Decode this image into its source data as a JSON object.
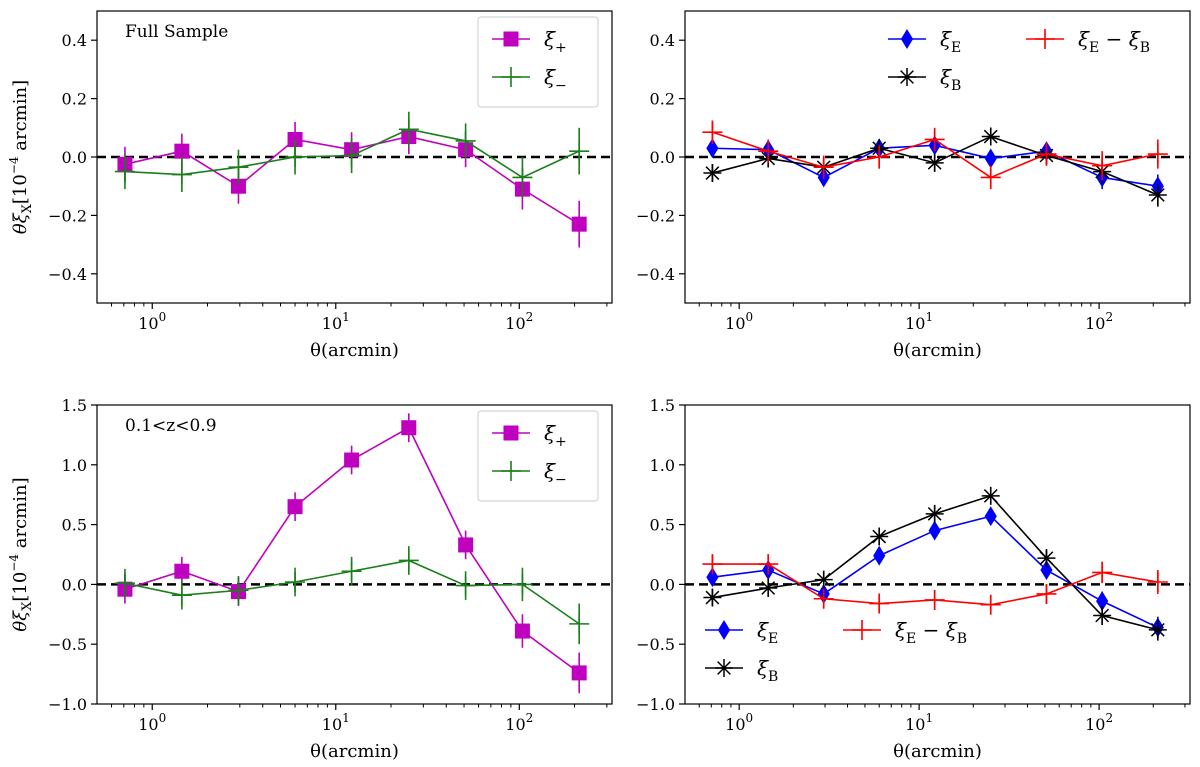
{
  "chart_data": [
    {
      "type": "line",
      "panel": "top-left",
      "annotation": "Full Sample",
      "xlabel": "θ(arcmin)",
      "ylabel": "θξ",
      "ylabel_sub": "X",
      "ylabel_unit": "[10",
      "ylabel_exp": "−4",
      "ylabel_unit_tail": " arcmin]",
      "xscale": "log",
      "xlim": [
        0.5,
        320
      ],
      "ylim": [
        -0.5,
        0.5
      ],
      "x_ticks": [
        {
          "value": 1,
          "label": "10",
          "exp": "0"
        },
        {
          "value": 10,
          "label": "10",
          "exp": "1"
        },
        {
          "value": 100,
          "label": "10",
          "exp": "2"
        }
      ],
      "y_ticks": [
        {
          "value": 0.4,
          "label": "0.4"
        },
        {
          "value": 0.2,
          "label": "0.2"
        },
        {
          "value": 0.0,
          "label": "0.0"
        },
        {
          "value": -0.2,
          "label": "−0.2"
        },
        {
          "value": -0.4,
          "label": "−0.4"
        }
      ],
      "zero_line": true,
      "legend": {
        "position": "top-right",
        "columns": 1
      },
      "series": [
        {
          "name": "ξ",
          "sub": "+",
          "color": "#bf00bf",
          "marker": "square",
          "x": [
            0.71,
            1.45,
            2.95,
            6.0,
            12.2,
            25.0,
            51.0,
            104.0,
            212.0
          ],
          "y": [
            -0.025,
            0.02,
            -0.1,
            0.06,
            0.025,
            0.07,
            0.025,
            -0.11,
            -0.23
          ],
          "err": [
            0.06,
            0.06,
            0.06,
            0.06,
            0.06,
            0.06,
            0.06,
            0.07,
            0.08
          ]
        },
        {
          "name": "ξ",
          "sub": "−",
          "color": "#1a7f1a",
          "marker": "plus",
          "x": [
            0.71,
            1.45,
            2.95,
            6.0,
            12.2,
            25.0,
            51.0,
            104.0,
            212.0
          ],
          "y": [
            -0.05,
            -0.06,
            -0.035,
            0.0,
            0.005,
            0.095,
            0.055,
            -0.07,
            0.02
          ],
          "err": [
            0.06,
            0.06,
            0.06,
            0.06,
            0.06,
            0.06,
            0.06,
            0.07,
            0.08
          ]
        }
      ]
    },
    {
      "type": "line",
      "panel": "top-right",
      "xlabel": "θ(arcmin)",
      "xscale": "log",
      "xlim": [
        0.5,
        320
      ],
      "ylim": [
        -0.5,
        0.5
      ],
      "x_ticks": [
        {
          "value": 1,
          "label": "10",
          "exp": "0"
        },
        {
          "value": 10,
          "label": "10",
          "exp": "1"
        },
        {
          "value": 100,
          "label": "10",
          "exp": "2"
        }
      ],
      "y_ticks": [
        {
          "value": 0.4,
          "label": "0.4"
        },
        {
          "value": 0.2,
          "label": "0.2"
        },
        {
          "value": 0.0,
          "label": "0.0"
        },
        {
          "value": -0.2,
          "label": "−0.2"
        },
        {
          "value": -0.4,
          "label": "−0.4"
        }
      ],
      "zero_line": true,
      "legend": {
        "position": "top-right",
        "columns": 2
      },
      "series": [
        {
          "name": "ξ",
          "sub": "E",
          "color": "#0000ff",
          "marker": "diamond",
          "x": [
            0.71,
            1.45,
            2.95,
            6.0,
            12.2,
            25.0,
            51.0,
            104.0,
            212.0
          ],
          "y": [
            0.03,
            0.025,
            -0.07,
            0.03,
            0.04,
            -0.005,
            0.02,
            -0.07,
            -0.1
          ],
          "err": [
            0.03,
            0.03,
            0.03,
            0.03,
            0.03,
            0.03,
            0.03,
            0.04,
            0.04
          ]
        },
        {
          "name": "ξ",
          "sub": "B",
          "color": "#000000",
          "marker": "star",
          "x": [
            0.71,
            1.45,
            2.95,
            6.0,
            12.2,
            25.0,
            51.0,
            104.0,
            212.0
          ],
          "y": [
            -0.055,
            -0.005,
            -0.035,
            0.03,
            -0.02,
            0.07,
            0.005,
            -0.05,
            -0.13
          ],
          "err": [
            0.03,
            0.03,
            0.03,
            0.03,
            0.03,
            0.03,
            0.03,
            0.04,
            0.04
          ]
        },
        {
          "name": "ξ",
          "sub": "E",
          "tail": " − ξ",
          "sub2": "B",
          "color": "#ff0000",
          "marker": "plus",
          "x": [
            0.71,
            1.45,
            2.95,
            6.0,
            12.2,
            25.0,
            51.0,
            104.0,
            212.0
          ],
          "y": [
            0.085,
            0.02,
            -0.035,
            0.0,
            0.06,
            -0.07,
            0.01,
            -0.03,
            0.01
          ],
          "err": [
            0.04,
            0.04,
            0.04,
            0.04,
            0.04,
            0.04,
            0.04,
            0.05,
            0.05
          ]
        }
      ]
    },
    {
      "type": "line",
      "panel": "bottom-left",
      "annotation": "0.1<z<0.9",
      "xlabel": "θ(arcmin)",
      "ylabel": "θξ",
      "ylabel_sub": "X",
      "ylabel_unit": "[10",
      "ylabel_exp": "−4",
      "ylabel_unit_tail": " arcmin]",
      "xscale": "log",
      "xlim": [
        0.5,
        320
      ],
      "ylim": [
        -1.0,
        1.5
      ],
      "x_ticks": [
        {
          "value": 1,
          "label": "10",
          "exp": "0"
        },
        {
          "value": 10,
          "label": "10",
          "exp": "1"
        },
        {
          "value": 100,
          "label": "10",
          "exp": "2"
        }
      ],
      "y_ticks": [
        {
          "value": 1.5,
          "label": "1.5"
        },
        {
          "value": 1.0,
          "label": "1.0"
        },
        {
          "value": 0.5,
          "label": "0.5"
        },
        {
          "value": 0.0,
          "label": "0.0"
        },
        {
          "value": -0.5,
          "label": "−0.5"
        },
        {
          "value": -1.0,
          "label": "−1.0"
        }
      ],
      "zero_line": true,
      "legend": {
        "position": "top-right",
        "columns": 1
      },
      "series": [
        {
          "name": "ξ",
          "sub": "+",
          "color": "#bf00bf",
          "marker": "square",
          "x": [
            0.71,
            1.45,
            2.95,
            6.0,
            12.2,
            25.0,
            51.0,
            104.0,
            212.0
          ],
          "y": [
            -0.04,
            0.11,
            -0.06,
            0.65,
            1.04,
            1.31,
            0.33,
            -0.39,
            -0.74
          ],
          "err": [
            0.12,
            0.12,
            0.12,
            0.12,
            0.12,
            0.12,
            0.12,
            0.14,
            0.17
          ]
        },
        {
          "name": "ξ",
          "sub": "−",
          "color": "#1a7f1a",
          "marker": "plus",
          "x": [
            0.71,
            1.45,
            2.95,
            6.0,
            12.2,
            25.0,
            51.0,
            104.0,
            212.0
          ],
          "y": [
            0.01,
            -0.09,
            -0.05,
            0.02,
            0.11,
            0.2,
            -0.01,
            0.0,
            -0.33
          ],
          "err": [
            0.12,
            0.12,
            0.12,
            0.12,
            0.12,
            0.12,
            0.12,
            0.14,
            0.17
          ]
        }
      ]
    },
    {
      "type": "line",
      "panel": "bottom-right",
      "xlabel": "θ(arcmin)",
      "xscale": "log",
      "xlim": [
        0.5,
        320
      ],
      "ylim": [
        -1.0,
        1.5
      ],
      "x_ticks": [
        {
          "value": 1,
          "label": "10",
          "exp": "0"
        },
        {
          "value": 10,
          "label": "10",
          "exp": "1"
        },
        {
          "value": 100,
          "label": "10",
          "exp": "2"
        }
      ],
      "y_ticks": [
        {
          "value": 1.5,
          "label": "1.5"
        },
        {
          "value": 1.0,
          "label": "1.0"
        },
        {
          "value": 0.5,
          "label": "0.5"
        },
        {
          "value": 0.0,
          "label": "0.0"
        },
        {
          "value": -0.5,
          "label": "−0.5"
        },
        {
          "value": -1.0,
          "label": "−1.0"
        }
      ],
      "zero_line": true,
      "legend": {
        "position": "bottom-left",
        "columns": 2
      },
      "series": [
        {
          "name": "ξ",
          "sub": "E",
          "color": "#0000ff",
          "marker": "diamond",
          "x": [
            0.71,
            1.45,
            2.95,
            6.0,
            12.2,
            25.0,
            51.0,
            104.0,
            212.0
          ],
          "y": [
            0.06,
            0.12,
            -0.08,
            0.24,
            0.45,
            0.57,
            0.12,
            -0.14,
            -0.36
          ],
          "err": [
            0.07,
            0.07,
            0.07,
            0.07,
            0.07,
            0.07,
            0.07,
            0.08,
            0.09
          ]
        },
        {
          "name": "ξ",
          "sub": "B",
          "color": "#000000",
          "marker": "star",
          "x": [
            0.71,
            1.45,
            2.95,
            6.0,
            12.2,
            25.0,
            51.0,
            104.0,
            212.0
          ],
          "y": [
            -0.11,
            -0.03,
            0.04,
            0.4,
            0.59,
            0.74,
            0.22,
            -0.26,
            -0.38
          ],
          "err": [
            0.07,
            0.07,
            0.07,
            0.07,
            0.07,
            0.07,
            0.07,
            0.08,
            0.09
          ]
        },
        {
          "name": "ξ",
          "sub": "E",
          "tail": " − ξ",
          "sub2": "B",
          "color": "#ff0000",
          "marker": "plus",
          "x": [
            0.71,
            1.45,
            2.95,
            6.0,
            12.2,
            25.0,
            51.0,
            104.0,
            212.0
          ],
          "y": [
            0.17,
            0.17,
            -0.12,
            -0.16,
            -0.13,
            -0.17,
            -0.08,
            0.1,
            0.02
          ],
          "err": [
            0.08,
            0.08,
            0.08,
            0.08,
            0.08,
            0.08,
            0.08,
            0.09,
            0.1
          ]
        }
      ]
    }
  ]
}
